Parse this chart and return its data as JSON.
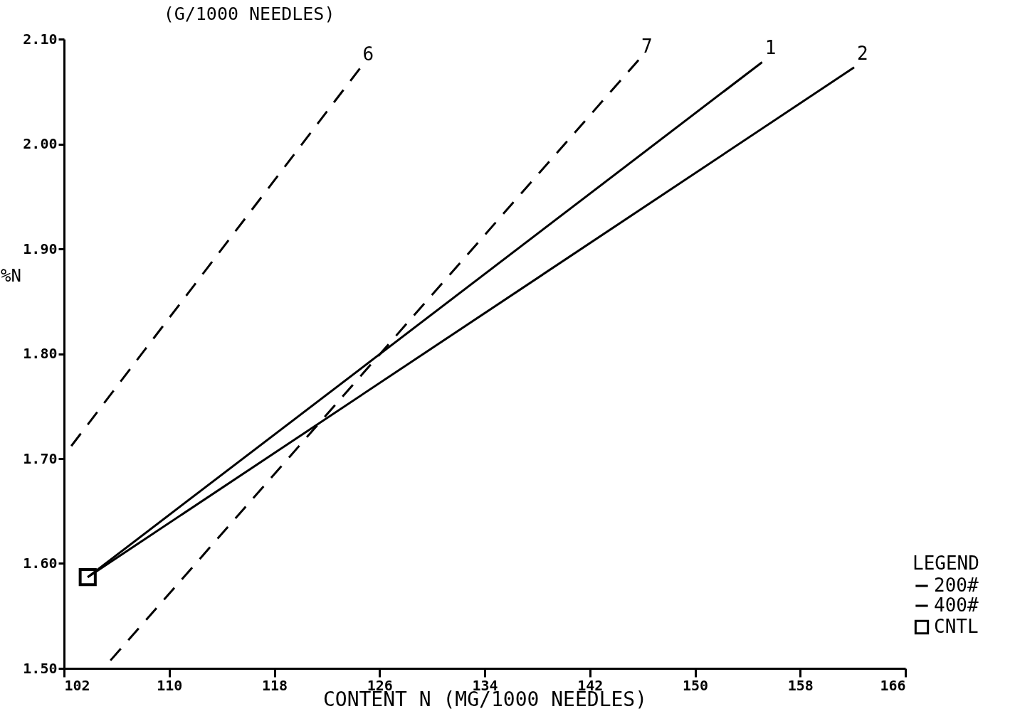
{
  "chart_data": {
    "type": "line",
    "xlabel": "CONTENT  N (MG/1000 NEEDLES)",
    "ylabel": "%N",
    "legend_title": "LEGEND",
    "legend": "bottom right",
    "grid": false,
    "xlim": [
      102,
      166
    ],
    "xticks": [
      102,
      110,
      118,
      126,
      134,
      142,
      150,
      158,
      166
    ],
    "ylim": [
      1.5,
      2.1
    ],
    "yticks": [
      {
        "value": 1.5,
        "label": "1.50"
      },
      {
        "value": 1.6,
        "label": "1.60"
      },
      {
        "value": 1.7,
        "label": "1.70"
      },
      {
        "value": 1.8,
        "label": "1.80"
      },
      {
        "value": 1.9,
        "label": "1.90"
      },
      {
        "value": 2.0,
        "label": "2.00"
      },
      {
        "value": 2.1,
        "label": "2.10"
      }
    ],
    "series": [
      {
        "color": "#000000",
        "line_style": "dashed",
        "x": [
          102,
          124.5
        ],
        "values": [
          1.703,
          2.072
        ]
      },
      {
        "color": "#000000",
        "line_style": "dashed",
        "x": [
          105,
          145.7
        ],
        "values": [
          1.5,
          2.08
        ]
      },
      {
        "name": "200#",
        "color": "#000000",
        "line_style": "solid",
        "x": [
          103.8,
          155.1
        ],
        "values": [
          1.587,
          2.078
        ]
      },
      {
        "name": "400#",
        "color": "#000000",
        "line_style": "solid",
        "x": [
          103.8,
          162.1
        ],
        "values": [
          1.587,
          2.073
        ]
      },
      {
        "name": "CNTL",
        "type": "scatter",
        "marker": "square",
        "color": "#000000",
        "x": [
          103.8
        ],
        "values": [
          1.587
        ]
      }
    ],
    "annotations": [
      "(G/1000 NEEDLES)",
      {
        "text": "6",
        "x": 124.5,
        "y": 2.072
      },
      {
        "text": "7",
        "x": 145.7,
        "y": 2.08
      },
      {
        "text": "1",
        "x": 155.1,
        "y": 2.078
      },
      {
        "text": "2",
        "x": 162.1,
        "y": 2.073
      }
    ]
  }
}
